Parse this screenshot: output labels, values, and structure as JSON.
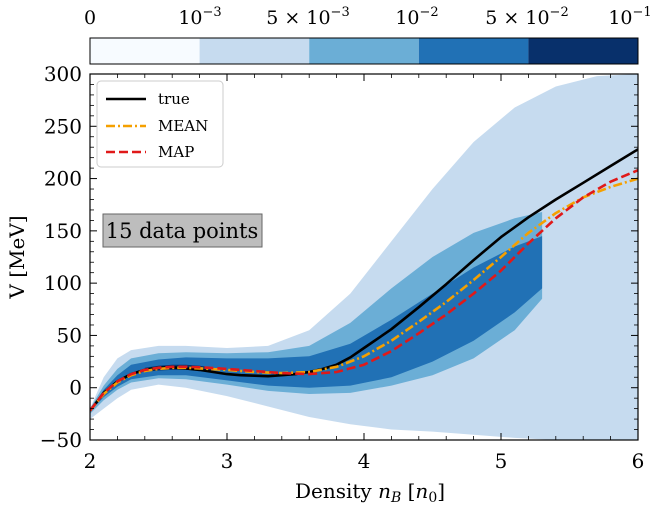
{
  "chart_data": {
    "type": "line",
    "xlabel": "Density n_B [n_0]",
    "ylabel": "V [MeV]",
    "xlim": [
      2,
      6
    ],
    "ylim": [
      -50,
      300
    ],
    "x_ticks": [
      "2",
      "3",
      "4",
      "5",
      "6"
    ],
    "y_ticks": [
      "−50",
      "0",
      "50",
      "100",
      "150",
      "200",
      "250",
      "300"
    ],
    "annotation": "15 data points",
    "legend": {
      "placement": "top-left",
      "entries": [
        "true",
        "MEAN",
        "MAP"
      ]
    },
    "grid": false,
    "colorbar": {
      "placement": "top",
      "tick_labels": [
        "0",
        "10^-3",
        "5 × 10^-3",
        "10^-2",
        "5 × 10^-2",
        "10^-1"
      ],
      "colors": [
        "#f7fbff",
        "#c6dbef",
        "#6baed6",
        "#2171b5",
        "#08306b"
      ]
    },
    "series": [
      {
        "name": "true",
        "color": "#000000",
        "style": "solid",
        "x": [
          2.0,
          2.1,
          2.2,
          2.3,
          2.4,
          2.5,
          2.6,
          2.7,
          2.8,
          2.9,
          3.0,
          3.1,
          3.2,
          3.3,
          3.4,
          3.5,
          3.6,
          3.7,
          3.8,
          3.9,
          4.0,
          4.2,
          4.4,
          4.6,
          4.8,
          5.0,
          5.2,
          5.4,
          5.6,
          5.8,
          6.0
        ],
        "y": [
          -22,
          -5,
          6,
          13,
          17,
          19,
          19.5,
          18.5,
          17,
          15,
          13,
          12,
          11.5,
          11,
          12,
          13,
          15,
          18,
          22,
          29,
          38,
          56,
          77,
          99,
          122,
          144,
          163,
          180,
          196,
          212,
          228
        ]
      },
      {
        "name": "MEAN",
        "color": "#f5a000",
        "style": "dashdot",
        "x": [
          2.0,
          2.1,
          2.2,
          2.3,
          2.4,
          2.5,
          2.6,
          2.7,
          2.8,
          3.0,
          3.2,
          3.4,
          3.6,
          3.8,
          4.0,
          4.2,
          4.4,
          4.6,
          4.8,
          5.0,
          5.2,
          5.4,
          5.6,
          5.8,
          6.0
        ],
        "y": [
          -22,
          -6,
          5,
          12,
          16,
          18,
          19,
          19,
          18.5,
          17,
          15,
          14,
          15,
          20,
          30,
          45,
          63,
          82,
          103,
          125,
          148,
          167,
          182,
          192,
          200
        ]
      },
      {
        "name": "MAP",
        "color": "#e01919",
        "style": "dashed",
        "x": [
          2.0,
          2.1,
          2.2,
          2.3,
          2.4,
          2.5,
          2.6,
          2.7,
          2.8,
          3.0,
          3.2,
          3.4,
          3.6,
          3.8,
          4.0,
          4.2,
          4.4,
          4.6,
          4.8,
          5.0,
          5.2,
          5.4,
          5.6,
          5.8,
          6.0
        ],
        "y": [
          -22,
          -5,
          6,
          13,
          17,
          19,
          20,
          20,
          19.5,
          18,
          16,
          14,
          13,
          15,
          22,
          35,
          52,
          70,
          90,
          112,
          138,
          162,
          182,
          197,
          208
        ]
      }
    ],
    "density_bands": [
      {
        "level_index": 1,
        "x": [
          2.0,
          2.1,
          2.2,
          2.3,
          2.5,
          2.7,
          3.0,
          3.3,
          3.6,
          3.9,
          4.2,
          4.5,
          4.8,
          5.1,
          5.4,
          5.7,
          6.0
        ],
        "upper": [
          -20,
          10,
          28,
          36,
          40,
          40,
          38,
          40,
          55,
          90,
          140,
          190,
          235,
          268,
          288,
          298,
          300
        ],
        "lower": [
          -30,
          -20,
          -10,
          -2,
          3,
          0,
          -8,
          -18,
          -28,
          -35,
          -40,
          -42,
          -45,
          -48,
          -50,
          -50,
          -50
        ]
      },
      {
        "level_index": 2,
        "x": [
          2.0,
          2.1,
          2.2,
          2.3,
          2.5,
          2.7,
          3.0,
          3.3,
          3.6,
          3.9,
          4.2,
          4.5,
          4.8,
          5.1,
          5.3
        ],
        "upper": [
          -20,
          2,
          18,
          28,
          33,
          34,
          33,
          34,
          40,
          62,
          95,
          125,
          148,
          162,
          168
        ],
        "lower": [
          -25,
          -12,
          -2,
          5,
          9,
          8,
          3,
          -3,
          -6,
          -5,
          2,
          12,
          28,
          55,
          85
        ]
      },
      {
        "level_index": 3,
        "x": [
          2.0,
          2.1,
          2.2,
          2.3,
          2.5,
          2.7,
          3.0,
          3.3,
          3.6,
          3.9,
          4.2,
          4.5,
          4.8,
          5.1,
          5.3
        ],
        "upper": [
          -21,
          -2,
          12,
          22,
          27,
          29,
          28,
          28,
          30,
          42,
          65,
          90,
          115,
          135,
          145
        ],
        "lower": [
          -23,
          -9,
          1,
          8,
          12,
          12,
          7,
          2,
          0,
          2,
          10,
          25,
          45,
          72,
          95
        ]
      },
      {
        "level_index": 4,
        "x": [
          2.4,
          2.5,
          2.6,
          2.7,
          2.8,
          2.9
        ],
        "upper": [
          19,
          21,
          22,
          22,
          21,
          19
        ],
        "lower": [
          15,
          16.5,
          17,
          17,
          16.5,
          15
        ]
      }
    ]
  }
}
